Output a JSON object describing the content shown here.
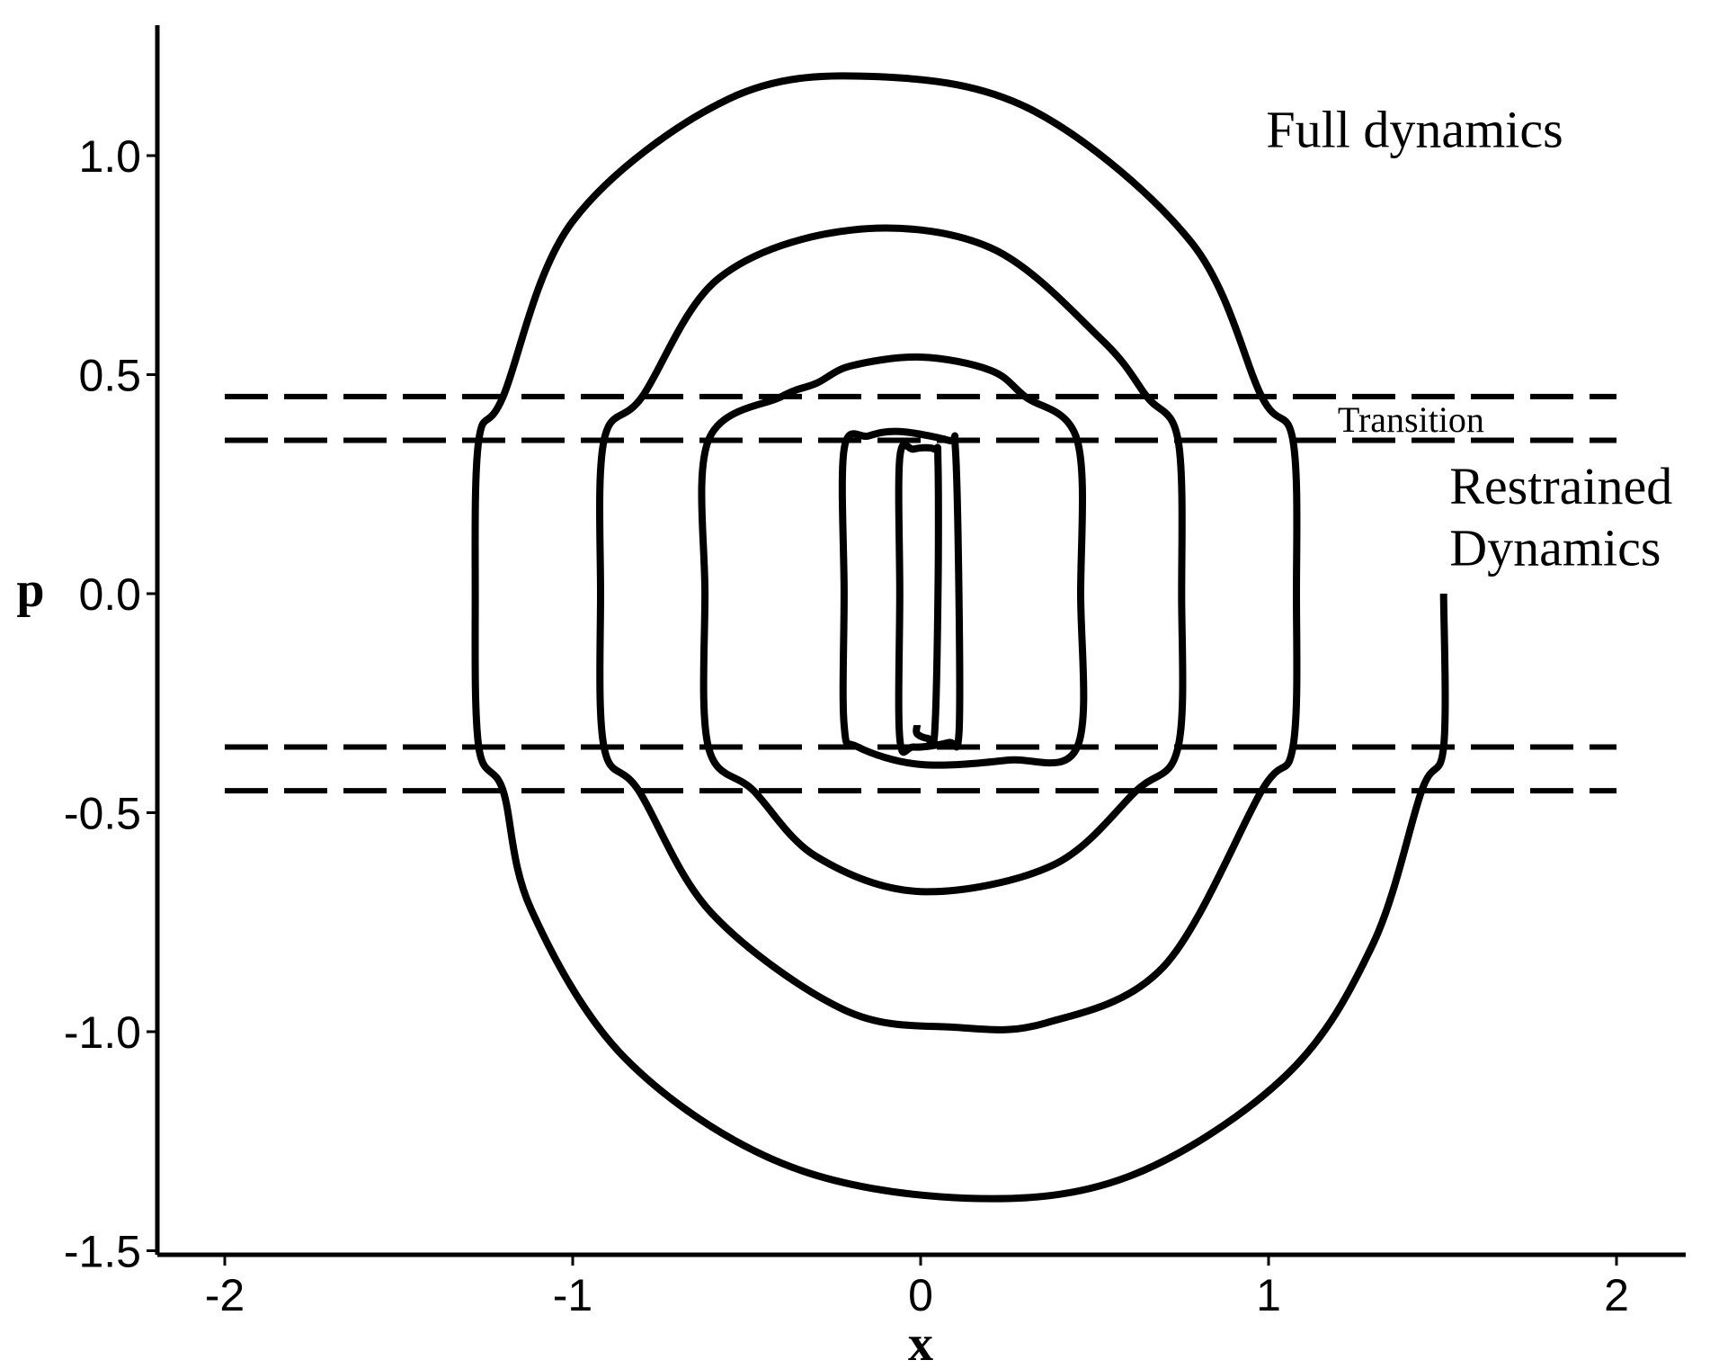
{
  "chart_data": {
    "type": "line",
    "title": "",
    "xlabel": "x",
    "ylabel": "p",
    "xlim": [
      -2.2,
      2.2
    ],
    "ylim": [
      -1.5,
      1.3
    ],
    "x_ticks": [
      -2,
      -1,
      0,
      1,
      2
    ],
    "x_tick_labels": [
      "-2",
      "-1",
      "0",
      "1",
      "2"
    ],
    "y_ticks": [
      -1.5,
      -1.0,
      -0.5,
      0.0,
      0.5,
      1.0
    ],
    "y_tick_labels": [
      "-1.5",
      "-1.0",
      "-0.5",
      "0.0",
      "0.5",
      "1.0"
    ],
    "grid": false,
    "legend": "none",
    "line_color": "#000000",
    "reference_lines": [
      {
        "style": "dashed",
        "y": 0.45,
        "x_range": [
          -2,
          2
        ]
      },
      {
        "style": "dashed",
        "y": 0.35,
        "x_range": [
          -2,
          2
        ]
      },
      {
        "style": "dashed",
        "y": -0.35,
        "x_range": [
          -2,
          2
        ]
      },
      {
        "style": "dashed",
        "y": -0.45,
        "x_range": [
          -2,
          2
        ]
      }
    ],
    "series": [
      {
        "style": "solid",
        "points": [
          [
            1.503,
            0.0
          ],
          [
            1.503,
            -0.35
          ],
          [
            1.44,
            -0.45
          ],
          [
            1.3,
            -0.8
          ],
          [
            1.05,
            -1.1
          ],
          [
            0.6,
            -1.33
          ],
          [
            0.13,
            -1.38
          ],
          [
            -0.4,
            -1.3
          ],
          [
            -0.85,
            -1.06
          ],
          [
            -1.12,
            -0.72
          ],
          [
            -1.2,
            -0.45
          ],
          [
            -1.27,
            -0.35
          ],
          [
            -1.28,
            0.0
          ],
          [
            -1.27,
            0.35
          ],
          [
            -1.2,
            0.45
          ],
          [
            -1.0,
            0.85
          ],
          [
            -0.55,
            1.13
          ],
          [
            -0.12,
            1.18
          ],
          [
            0.33,
            1.1
          ],
          [
            0.78,
            0.8
          ],
          [
            0.98,
            0.45
          ],
          [
            1.07,
            0.35
          ],
          [
            1.08,
            0.0
          ],
          [
            1.07,
            -0.35
          ],
          [
            0.98,
            -0.45
          ],
          [
            0.7,
            -0.85
          ],
          [
            0.36,
            -0.98
          ],
          [
            0.1,
            -0.99
          ],
          [
            -0.22,
            -0.95
          ],
          [
            -0.6,
            -0.73
          ],
          [
            -0.81,
            -0.45
          ],
          [
            -0.91,
            -0.35
          ],
          [
            -0.92,
            0.0
          ],
          [
            -0.91,
            0.35
          ],
          [
            -0.8,
            0.45
          ],
          [
            -0.58,
            0.72
          ],
          [
            -0.2,
            0.83
          ],
          [
            0.2,
            0.79
          ],
          [
            0.52,
            0.58
          ],
          [
            0.65,
            0.45
          ],
          [
            0.74,
            0.35
          ],
          [
            0.75,
            0.0
          ],
          [
            0.74,
            -0.35
          ],
          [
            0.62,
            -0.45
          ],
          [
            0.38,
            -0.62
          ],
          [
            0.0,
            -0.68
          ],
          [
            -0.3,
            -0.6
          ],
          [
            -0.48,
            -0.45
          ],
          [
            -0.61,
            -0.35
          ],
          [
            -0.62,
            0.0
          ],
          [
            -0.61,
            0.35
          ],
          [
            -0.4,
            0.45
          ],
          [
            -0.3,
            0.48
          ],
          [
            -0.2,
            0.52
          ],
          [
            0.0,
            0.54
          ],
          [
            0.2,
            0.51
          ],
          [
            0.3,
            0.45
          ],
          [
            0.45,
            0.35
          ],
          [
            0.46,
            0.0
          ],
          [
            0.45,
            -0.35
          ],
          [
            0.25,
            -0.38
          ],
          [
            0.0,
            -0.39
          ],
          [
            -0.18,
            -0.35
          ],
          [
            -0.22,
            -0.3
          ],
          [
            -0.22,
            0.0
          ],
          [
            -0.22,
            0.33
          ],
          [
            -0.15,
            0.36
          ],
          [
            -0.06,
            0.37
          ],
          [
            0.08,
            0.35
          ],
          [
            0.1,
            0.33
          ],
          [
            0.11,
            0.0
          ],
          [
            0.11,
            -0.32
          ],
          [
            0.08,
            -0.34
          ],
          [
            -0.02,
            -0.35
          ],
          [
            -0.06,
            -0.33
          ],
          [
            -0.06,
            0.0
          ],
          [
            -0.06,
            0.31
          ],
          [
            -0.02,
            0.33
          ],
          [
            0.04,
            0.33
          ],
          [
            0.05,
            0.3
          ],
          [
            0.05,
            0.0
          ],
          [
            0.04,
            -0.32
          ],
          [
            0.02,
            -0.33
          ],
          [
            -0.01,
            -0.32
          ],
          [
            -0.01,
            -0.3
          ]
        ]
      }
    ],
    "annotations": [
      {
        "text": "Full dynamics",
        "x": 1.42,
        "y": 1.02,
        "anchor": "middle",
        "size": "large"
      },
      {
        "text": "Transition",
        "x": 1.62,
        "y": 0.37,
        "anchor": "end",
        "size": "small"
      },
      {
        "text": "Restrained",
        "x": 1.52,
        "y": 0.205,
        "anchor": "start",
        "size": "large"
      },
      {
        "text": "Dynamics",
        "x": 1.52,
        "y": 0.065,
        "anchor": "start",
        "size": "large"
      }
    ]
  }
}
